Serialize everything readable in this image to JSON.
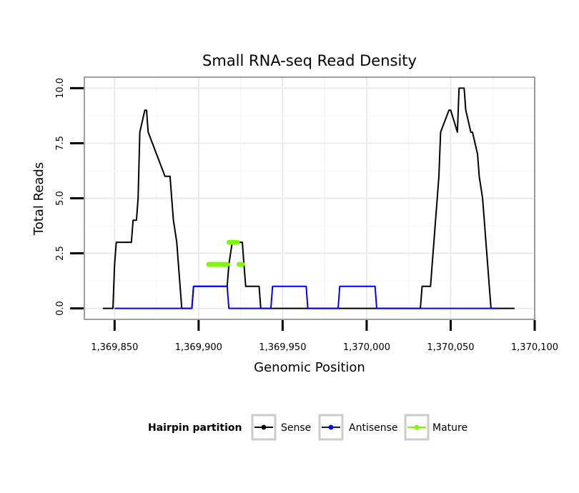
{
  "chart_data": {
    "type": "line",
    "title": "Small RNA-seq Read Density",
    "xlabel": "Genomic Position",
    "ylabel": "Total Reads",
    "xlim": [
      1369832,
      1370100
    ],
    "ylim": [
      -0.5,
      10.5
    ],
    "x_ticks": [
      1369850,
      1369900,
      1369950,
      1370000,
      1370050,
      1370100
    ],
    "x_tick_labels": [
      "1,369,850",
      "1,369,900",
      "1,369,950",
      "1,370,000",
      "1,370,050",
      "1,370,100"
    ],
    "y_ticks": [
      0,
      2.5,
      5,
      7.5,
      10
    ],
    "y_tick_labels": [
      "0.0",
      "2.5",
      "5.0",
      "7.5",
      "10.0"
    ],
    "grid": true,
    "legend": {
      "title": "Hairpin partition",
      "position": "bottom",
      "entries": [
        "Sense",
        "Antisense",
        "Mature"
      ]
    },
    "series": [
      {
        "name": "Sense",
        "color": "#000000",
        "style": "step-line",
        "x": [
          1369843,
          1369849,
          1369850,
          1369851,
          1369857,
          1369858,
          1369860,
          1369861,
          1369863,
          1369864,
          1369865,
          1369868,
          1369869,
          1369870,
          1369880,
          1369881,
          1369882,
          1369883,
          1369884,
          1369885,
          1369887,
          1369888,
          1369890,
          1369896,
          1369897,
          1369912,
          1369917,
          1369918,
          1369920,
          1369926,
          1369927,
          1369928,
          1369936,
          1369937,
          1369950,
          1369975,
          1369995,
          1370032,
          1370033,
          1370038,
          1370039,
          1370040,
          1370041,
          1370042,
          1370043,
          1370044,
          1370049,
          1370050,
          1370054,
          1370055,
          1370058,
          1370059,
          1370062,
          1370063,
          1370066,
          1370067,
          1370069,
          1370070,
          1370071,
          1370072,
          1370073,
          1370074,
          1370075,
          1370076,
          1370077,
          1370078,
          1370088
        ],
        "y": [
          0,
          0,
          2,
          3,
          3,
          3,
          3,
          4,
          4,
          5,
          8,
          9,
          9,
          8,
          6,
          6,
          6,
          6,
          5,
          4,
          3,
          2,
          0,
          0,
          1,
          1,
          1,
          2,
          3,
          3,
          2,
          1,
          1,
          0,
          0,
          0,
          0,
          0,
          1,
          1,
          2,
          3,
          4,
          5,
          6,
          8,
          9,
          9,
          8,
          10,
          10,
          9,
          8,
          8,
          7,
          6,
          5,
          4,
          3,
          2,
          1,
          0,
          0,
          0,
          0,
          0,
          0
        ]
      },
      {
        "name": "Antisense",
        "color": "#0000ff",
        "style": "step-line",
        "x": [
          1369850,
          1369896,
          1369897,
          1369910,
          1369917,
          1369918,
          1369943,
          1369944,
          1369956,
          1369964,
          1369965,
          1369983,
          1369984,
          1369995,
          1370005,
          1370006,
          1370078
        ],
        "y": [
          0,
          0,
          1,
          1,
          1,
          0,
          0,
          1,
          1,
          1,
          0,
          0,
          1,
          1,
          1,
          0,
          0
        ]
      },
      {
        "name": "Mature",
        "color": "#7cfc00",
        "style": "points",
        "x": [
          1369906,
          1369907,
          1369908,
          1369909,
          1369910,
          1369911,
          1369912,
          1369913,
          1369914,
          1369915,
          1369916,
          1369917,
          1369918,
          1369919,
          1369920,
          1369921,
          1369922,
          1369923,
          1369924,
          1369925,
          1369926
        ],
        "y": [
          2,
          2,
          2,
          2,
          2,
          2,
          2,
          2,
          2,
          2,
          2,
          2,
          3,
          3,
          3,
          3,
          3,
          3,
          2,
          2,
          2
        ]
      }
    ]
  }
}
